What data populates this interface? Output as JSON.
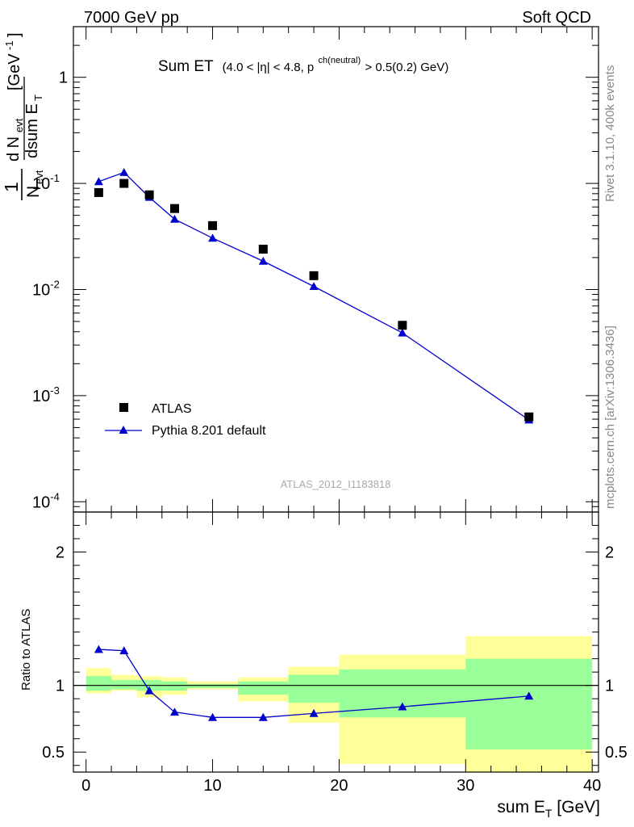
{
  "header": {
    "left": "7000 GeV pp",
    "right": "Soft QCD"
  },
  "side_labels": {
    "rivet": "Rivet 3.1.10,  400k events",
    "mcplots": "mcplots.cern.ch [arXiv:1306.3436]"
  },
  "plot_title": {
    "main": "Sum ET",
    "detail_a": "(4.0 < |η| < 4.8, p",
    "detail_sup": "ch(neutral)",
    "detail_b": " > 0.5(0.2) GeV)"
  },
  "analysis_id": "ATLAS_2012_I1183818",
  "colors": {
    "atlas": "#000000",
    "pythia": "#0000cc",
    "band_inner": "#99ff99",
    "band_outer": "#ffff99"
  },
  "chart_data": [
    {
      "type": "scatter",
      "ylabel": "1/N_evt dN_evt/dsum E_T [GeV^-1]",
      "yscale": "log",
      "xlim": [
        -1,
        40.5
      ],
      "ylim": [
        8e-05,
        3
      ],
      "yticks": [
        "10^-4",
        "10^-3",
        "10^-2",
        "10^-1",
        "1"
      ],
      "legend_position": "bottom-left",
      "series": [
        {
          "name": "ATLAS",
          "marker": "square",
          "x": [
            1,
            3,
            5,
            7,
            10,
            14,
            18,
            25,
            35
          ],
          "y": [
            0.082,
            0.1,
            0.078,
            0.058,
            0.04,
            0.024,
            0.0135,
            0.0046,
            0.00063
          ]
        },
        {
          "name": "Pythia 8.201 default",
          "marker": "triangle",
          "x": [
            1,
            3,
            5,
            7,
            10,
            14,
            18,
            25,
            35
          ],
          "y": [
            0.104,
            0.127,
            0.074,
            0.046,
            0.0305,
            0.0185,
            0.0107,
            0.0039,
            0.00059
          ]
        }
      ]
    },
    {
      "type": "line",
      "xlabel": "sum E_T [GeV]",
      "ylabel": "Ratio to ATLAS",
      "xlim": [
        -1,
        40.5
      ],
      "ylim": [
        0.35,
        2.3
      ],
      "yticks": [
        "0.5",
        "1",
        "2"
      ],
      "xticks": [
        "0",
        "10",
        "20",
        "30",
        "40"
      ],
      "reference_line": 1,
      "bands": [
        {
          "x_low": 0,
          "x_high": 2,
          "inner": [
            0.96,
            1.07
          ],
          "outer": [
            0.94,
            1.13
          ]
        },
        {
          "x_low": 2,
          "x_high": 4,
          "inner": [
            0.97,
            1.04
          ],
          "outer": [
            0.96,
            1.08
          ]
        },
        {
          "x_low": 4,
          "x_high": 6,
          "inner": [
            0.96,
            1.04
          ],
          "outer": [
            0.91,
            1.07
          ]
        },
        {
          "x_low": 6,
          "x_high": 8,
          "inner": [
            0.96,
            1.03
          ],
          "outer": [
            0.93,
            1.06
          ]
        },
        {
          "x_low": 8,
          "x_high": 12,
          "inner": [
            0.98,
            1.01
          ],
          "outer": [
            0.97,
            1.03
          ]
        },
        {
          "x_low": 12,
          "x_high": 16,
          "inner": [
            0.93,
            1.03
          ],
          "outer": [
            0.88,
            1.06
          ]
        },
        {
          "x_low": 16,
          "x_high": 20,
          "inner": [
            0.87,
            1.08
          ],
          "outer": [
            0.72,
            1.14
          ]
        },
        {
          "x_low": 20,
          "x_high": 30,
          "inner": [
            0.76,
            1.12
          ],
          "outer": [
            0.41,
            1.23
          ]
        },
        {
          "x_low": 30,
          "x_high": 40,
          "inner": [
            0.52,
            1.2
          ],
          "outer": [
            0.35,
            1.37
          ]
        }
      ],
      "series": [
        {
          "name": "Pythia 8.201 default",
          "x": [
            1,
            3,
            5,
            7,
            10,
            14,
            18,
            25,
            35
          ],
          "y": [
            1.27,
            1.26,
            0.96,
            0.8,
            0.76,
            0.76,
            0.79,
            0.84,
            0.92
          ]
        }
      ]
    }
  ]
}
